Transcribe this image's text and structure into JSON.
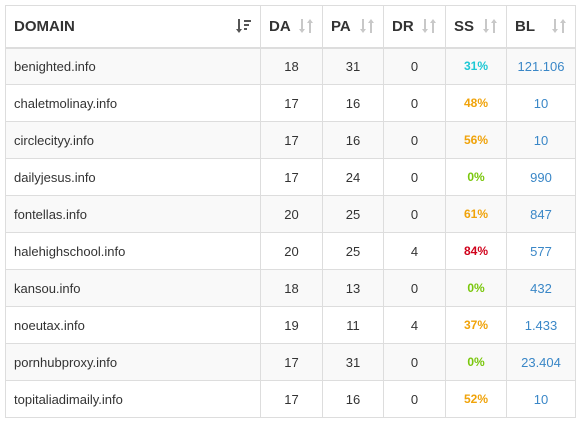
{
  "colors": {
    "ss_cyan": "#1ec8d4",
    "ss_orange": "#f0a30a",
    "ss_green": "#7ac70c",
    "ss_red": "#d0021b",
    "bl_link": "#3a87c7",
    "sort_active": "#555555",
    "sort_inactive": "#c8c8c8"
  },
  "table": {
    "headers": {
      "domain": "DOMAIN",
      "da": "DA",
      "pa": "PA",
      "dr": "DR",
      "ss": "SS",
      "bl": "BL"
    },
    "sorted_by": "DOMAIN",
    "rows": [
      {
        "domain": "benighted.info",
        "da": "18",
        "pa": "31",
        "dr": "0",
        "ss": "31%",
        "ss_color": "#1ec8d4",
        "bl": "121.106"
      },
      {
        "domain": "chaletmolinay.info",
        "da": "17",
        "pa": "16",
        "dr": "0",
        "ss": "48%",
        "ss_color": "#f0a30a",
        "bl": "10"
      },
      {
        "domain": "circlecityy.info",
        "da": "17",
        "pa": "16",
        "dr": "0",
        "ss": "56%",
        "ss_color": "#f0a30a",
        "bl": "10"
      },
      {
        "domain": "dailyjesus.info",
        "da": "17",
        "pa": "24",
        "dr": "0",
        "ss": "0%",
        "ss_color": "#7ac70c",
        "bl": "990"
      },
      {
        "domain": "fontellas.info",
        "da": "20",
        "pa": "25",
        "dr": "0",
        "ss": "61%",
        "ss_color": "#f0a30a",
        "bl": "847"
      },
      {
        "domain": "halehighschool.info",
        "da": "20",
        "pa": "25",
        "dr": "4",
        "ss": "84%",
        "ss_color": "#d0021b",
        "bl": "577"
      },
      {
        "domain": "kansou.info",
        "da": "18",
        "pa": "13",
        "dr": "0",
        "ss": "0%",
        "ss_color": "#7ac70c",
        "bl": "432"
      },
      {
        "domain": "noeutax.info",
        "da": "19",
        "pa": "11",
        "dr": "4",
        "ss": "37%",
        "ss_color": "#f0a30a",
        "bl": "1.433"
      },
      {
        "domain": "pornhubproxy.info",
        "da": "17",
        "pa": "31",
        "dr": "0",
        "ss": "0%",
        "ss_color": "#7ac70c",
        "bl": "23.404"
      },
      {
        "domain": "topitaliadimaily.info",
        "da": "17",
        "pa": "16",
        "dr": "0",
        "ss": "52%",
        "ss_color": "#f0a30a",
        "bl": "10"
      }
    ]
  }
}
